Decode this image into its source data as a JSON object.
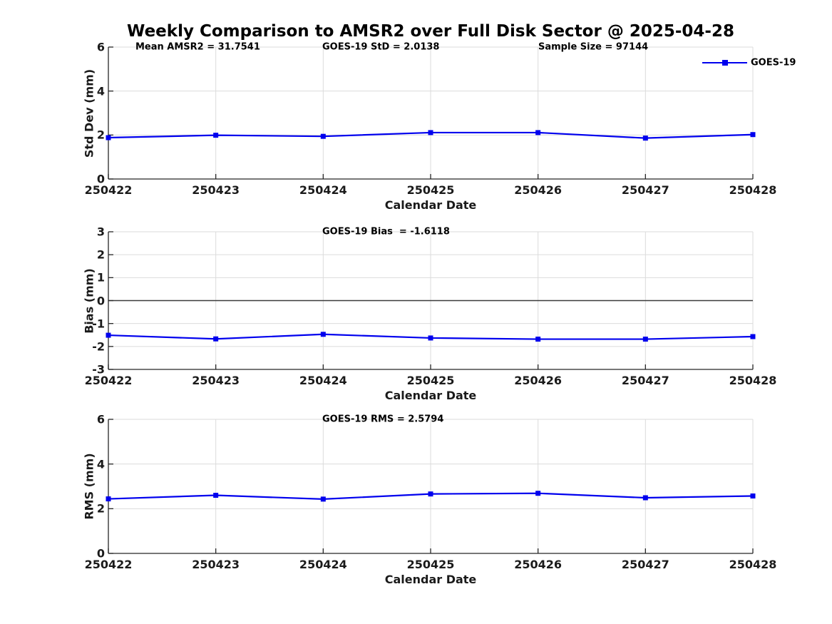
{
  "title": "Weekly Comparison to AMSR2 over Full Disk Sector @ 2025-04-28",
  "legend": {
    "label": "GOES-19",
    "position": "top-right"
  },
  "colors": {
    "series": "#0000EE",
    "grid": "#DBDBDB",
    "axis": "#262626",
    "zero_line": "#3A3A3A",
    "text": "#1A1A1A",
    "title_text": "#000000",
    "background": "#FFFFFF"
  },
  "chart_data": [
    {
      "type": "line",
      "name": "stddev",
      "annotations": [
        "Mean AMSR2 = 31.7541",
        "GOES-19 StD = 2.0138",
        "Sample Size = 97144"
      ],
      "categories": [
        "250422",
        "250423",
        "250424",
        "250425",
        "250426",
        "250427",
        "250428"
      ],
      "series": [
        {
          "name": "GOES-19",
          "marker": "square",
          "values": [
            1.88,
            1.99,
            1.94,
            2.11,
            2.11,
            1.86,
            2.02
          ]
        }
      ],
      "xlabel": "Calendar Date",
      "ylabel": "Std Dev (mm)",
      "ylim": [
        0,
        6
      ],
      "yticks": [
        0,
        2,
        4,
        6
      ],
      "grid": true,
      "zero_line": false,
      "legend_position": "top-right"
    },
    {
      "type": "line",
      "name": "bias",
      "annotations": [
        "GOES-19 Bias  = -1.6118"
      ],
      "categories": [
        "250422",
        "250423",
        "250424",
        "250425",
        "250426",
        "250427",
        "250428"
      ],
      "series": [
        {
          "name": "GOES-19",
          "marker": "square",
          "values": [
            -1.51,
            -1.67,
            -1.47,
            -1.63,
            -1.68,
            -1.68,
            -1.57
          ]
        }
      ],
      "xlabel": "Calendar Date",
      "ylabel": "Bias (mm)",
      "ylim": [
        -3,
        3
      ],
      "yticks": [
        -3,
        -2,
        -1,
        0,
        1,
        2,
        3
      ],
      "grid": true,
      "zero_line": true
    },
    {
      "type": "line",
      "name": "rms",
      "annotations": [
        "GOES-19 RMS = 2.5794"
      ],
      "categories": [
        "250422",
        "250423",
        "250424",
        "250425",
        "250426",
        "250427",
        "250428"
      ],
      "series": [
        {
          "name": "GOES-19",
          "marker": "square",
          "values": [
            2.44,
            2.6,
            2.43,
            2.66,
            2.69,
            2.49,
            2.57
          ]
        }
      ],
      "xlabel": "Calendar Date",
      "ylabel": "RMS (mm)",
      "ylim": [
        0,
        6
      ],
      "yticks": [
        0,
        2,
        4,
        6
      ],
      "grid": true,
      "zero_line": false
    }
  ]
}
